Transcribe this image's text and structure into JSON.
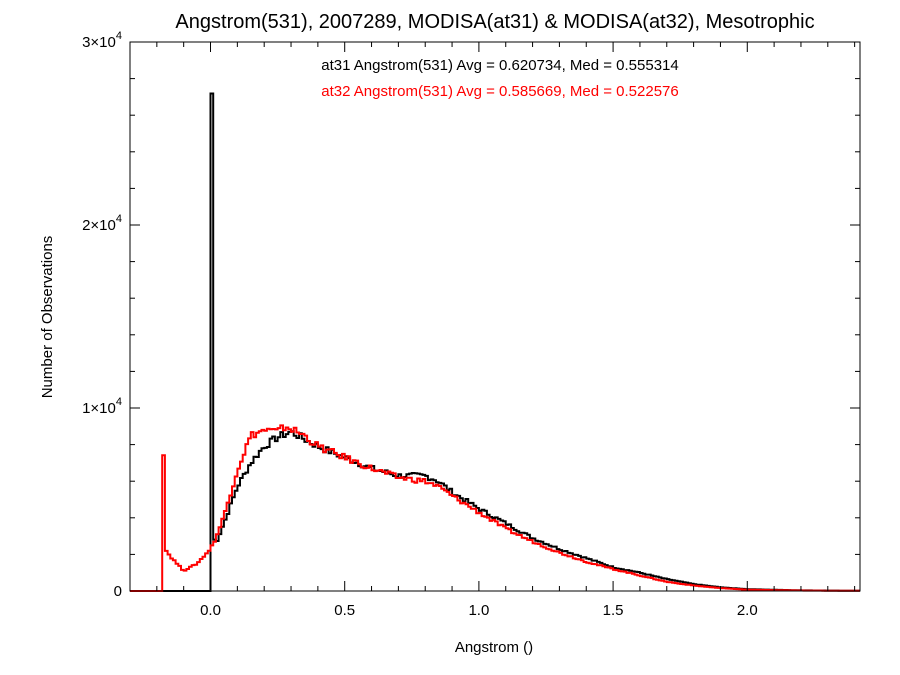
{
  "chart_data": {
    "type": "histogram",
    "title": "Angstrom(531), 2007289, MODISA(at31) & MODISA(at32), Mesotrophic",
    "xlabel": "Angstrom ()",
    "ylabel": "Number of Observations",
    "xlim": [
      -0.3,
      2.42
    ],
    "ylim": [
      0,
      30000
    ],
    "x_ticks": [
      {
        "value": 0.0,
        "label": "0.0"
      },
      {
        "value": 0.5,
        "label": "0.5"
      },
      {
        "value": 1.0,
        "label": "1.0"
      },
      {
        "value": 1.5,
        "label": "1.5"
      },
      {
        "value": 2.0,
        "label": "2.0"
      }
    ],
    "y_ticks": [
      {
        "value": 0,
        "label": "0"
      },
      {
        "value": 10000,
        "mantissa": "1",
        "times": "×10",
        "exponent": "4"
      },
      {
        "value": 20000,
        "mantissa": "2",
        "times": "×10",
        "exponent": "4"
      },
      {
        "value": 30000,
        "mantissa": "3",
        "times": "×10",
        "exponent": "4"
      }
    ],
    "legend_placement": "top-center",
    "grid": false,
    "series": [
      {
        "name": "at31",
        "color": "#000000",
        "legend_text": "at31 Angstrom(531) Avg = 0.620734, Med = 0.555314",
        "points": [
          [
            -0.3,
            0
          ],
          [
            0.0,
            0
          ],
          [
            0.0,
            27200
          ],
          [
            0.005,
            3600
          ],
          [
            0.01,
            3000
          ],
          [
            0.02,
            2600
          ],
          [
            0.05,
            3700
          ],
          [
            0.1,
            5700
          ],
          [
            0.15,
            7000
          ],
          [
            0.2,
            7900
          ],
          [
            0.25,
            8400
          ],
          [
            0.3,
            8700
          ],
          [
            0.35,
            8300
          ],
          [
            0.4,
            7900
          ],
          [
            0.5,
            7300
          ],
          [
            0.6,
            6700
          ],
          [
            0.7,
            6300
          ],
          [
            0.8,
            6300
          ],
          [
            0.85,
            6000
          ],
          [
            0.9,
            5400
          ],
          [
            1.0,
            4500
          ],
          [
            1.1,
            3700
          ],
          [
            1.2,
            2900
          ],
          [
            1.3,
            2300
          ],
          [
            1.4,
            1800
          ],
          [
            1.5,
            1300
          ],
          [
            1.6,
            1000
          ],
          [
            1.7,
            650
          ],
          [
            1.8,
            380
          ],
          [
            1.9,
            200
          ],
          [
            2.0,
            100
          ],
          [
            2.2,
            35
          ],
          [
            2.42,
            10
          ]
        ]
      },
      {
        "name": "at32",
        "color": "#ff0000",
        "legend_text": "at32 Angstrom(531) Avg = 0.585669, Med = 0.522576",
        "points": [
          [
            -0.3,
            0
          ],
          [
            -0.18,
            0
          ],
          [
            -0.18,
            7600
          ],
          [
            -0.17,
            2300
          ],
          [
            -0.15,
            1900
          ],
          [
            -0.1,
            1100
          ],
          [
            -0.05,
            1500
          ],
          [
            0.0,
            2300
          ],
          [
            0.02,
            2900
          ],
          [
            0.05,
            4100
          ],
          [
            0.1,
            6600
          ],
          [
            0.15,
            8500
          ],
          [
            0.2,
            8800
          ],
          [
            0.25,
            8700
          ],
          [
            0.28,
            9000
          ],
          [
            0.35,
            8500
          ],
          [
            0.4,
            7900
          ],
          [
            0.5,
            7300
          ],
          [
            0.6,
            6700
          ],
          [
            0.7,
            6200
          ],
          [
            0.8,
            6000
          ],
          [
            0.85,
            5700
          ],
          [
            0.9,
            5200
          ],
          [
            1.0,
            4300
          ],
          [
            1.1,
            3400
          ],
          [
            1.2,
            2700
          ],
          [
            1.3,
            2100
          ],
          [
            1.4,
            1600
          ],
          [
            1.5,
            1200
          ],
          [
            1.6,
            850
          ],
          [
            1.7,
            500
          ],
          [
            1.8,
            300
          ],
          [
            1.9,
            160
          ],
          [
            2.0,
            70
          ],
          [
            2.2,
            25
          ],
          [
            2.42,
            8
          ]
        ]
      }
    ]
  }
}
